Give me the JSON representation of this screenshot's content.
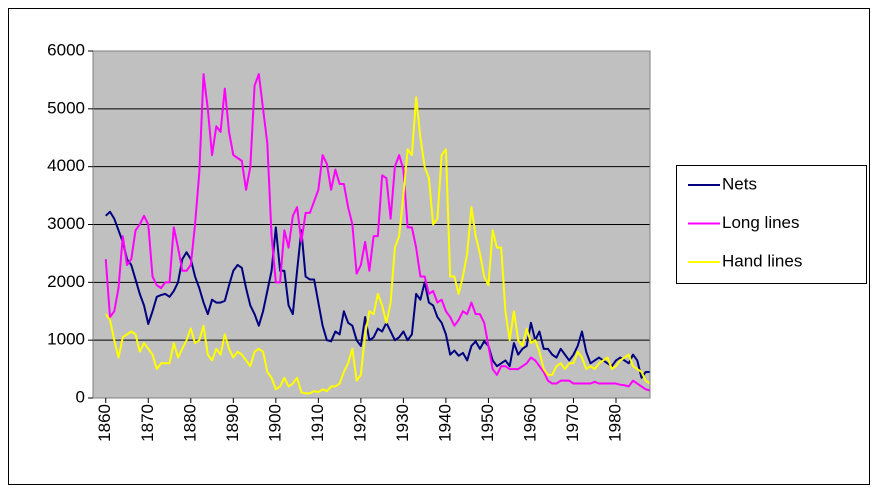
{
  "chart_data": {
    "type": "line",
    "x": [
      1860,
      1861,
      1862,
      1863,
      1864,
      1865,
      1866,
      1867,
      1868,
      1869,
      1870,
      1871,
      1872,
      1873,
      1874,
      1875,
      1876,
      1877,
      1878,
      1879,
      1880,
      1881,
      1882,
      1883,
      1884,
      1885,
      1886,
      1887,
      1888,
      1889,
      1890,
      1891,
      1892,
      1893,
      1894,
      1895,
      1896,
      1897,
      1898,
      1899,
      1900,
      1901,
      1902,
      1903,
      1904,
      1905,
      1906,
      1907,
      1908,
      1909,
      1910,
      1911,
      1912,
      1913,
      1914,
      1915,
      1916,
      1917,
      1918,
      1919,
      1920,
      1921,
      1922,
      1923,
      1924,
      1925,
      1926,
      1927,
      1928,
      1929,
      1930,
      1931,
      1932,
      1933,
      1934,
      1935,
      1936,
      1937,
      1938,
      1939,
      1940,
      1941,
      1942,
      1943,
      1944,
      1945,
      1946,
      1947,
      1948,
      1949,
      1950,
      1951,
      1952,
      1953,
      1954,
      1955,
      1956,
      1957,
      1958,
      1959,
      1960,
      1961,
      1962,
      1963,
      1964,
      1965,
      1966,
      1967,
      1968,
      1969,
      1970,
      1971,
      1972,
      1973,
      1974,
      1975,
      1976,
      1977,
      1978,
      1979,
      1980,
      1981,
      1982,
      1983,
      1984,
      1985,
      1986,
      1987,
      1988
    ],
    "series": [
      {
        "name": "Nets",
        "color": "#000080",
        "values": [
          3150,
          3220,
          3100,
          2900,
          2700,
          2400,
          2300,
          2050,
          1800,
          1600,
          1280,
          1500,
          1750,
          1780,
          1800,
          1750,
          1850,
          2000,
          2400,
          2520,
          2400,
          2100,
          1900,
          1650,
          1450,
          1700,
          1650,
          1650,
          1680,
          1950,
          2200,
          2300,
          2250,
          1900,
          1600,
          1450,
          1250,
          1500,
          1850,
          2200,
          2950,
          2200,
          2200,
          1600,
          1450,
          2200,
          2900,
          2100,
          2050,
          2050,
          1650,
          1250,
          1000,
          980,
          1150,
          1100,
          1500,
          1300,
          1250,
          1000,
          900,
          1400,
          1000,
          1050,
          1200,
          1150,
          1300,
          1150,
          1000,
          1050,
          1150,
          1000,
          1100,
          1800,
          1700,
          2000,
          1650,
          1600,
          1400,
          1300,
          1100,
          750,
          820,
          730,
          780,
          650,
          900,
          980,
          850,
          980,
          900,
          650,
          550,
          600,
          650,
          550,
          950,
          750,
          850,
          900,
          1300,
          1000,
          1150,
          850,
          850,
          750,
          700,
          850,
          750,
          650,
          750,
          900,
          1150,
          800,
          600,
          650,
          700,
          650,
          600,
          550,
          650,
          700,
          650,
          600,
          750,
          650,
          350,
          450,
          450
        ]
      },
      {
        "name": "Long lines",
        "color": "#ff00ff",
        "values": [
          2400,
          1400,
          1500,
          1900,
          2800,
          2300,
          2400,
          2900,
          3000,
          3150,
          3000,
          2100,
          1950,
          1900,
          2000,
          2000,
          2950,
          2600,
          2200,
          2200,
          2300,
          3000,
          3900,
          5600,
          5000,
          4200,
          4700,
          4600,
          5350,
          4600,
          4200,
          4150,
          4100,
          3600,
          4000,
          5400,
          5600,
          5000,
          4400,
          2800,
          2000,
          2000,
          2900,
          2600,
          3150,
          3300,
          2700,
          3200,
          3200,
          3400,
          3600,
          4200,
          4050,
          3600,
          3950,
          3700,
          3700,
          3300,
          3000,
          2150,
          2300,
          2700,
          2200,
          2800,
          2800,
          3850,
          3800,
          3100,
          4000,
          4200,
          3950,
          2950,
          2950,
          2600,
          2100,
          2100,
          1800,
          1850,
          1650,
          1700,
          1500,
          1400,
          1250,
          1350,
          1500,
          1450,
          1650,
          1450,
          1450,
          1300,
          900,
          500,
          400,
          550,
          550,
          500,
          500,
          500,
          550,
          600,
          700,
          650,
          550,
          450,
          300,
          250,
          250,
          300,
          300,
          300,
          250,
          250,
          250,
          250,
          250,
          280,
          250,
          250,
          250,
          250,
          250,
          230,
          220,
          200,
          300,
          250,
          200,
          150,
          130
        ]
      },
      {
        "name": "Hand lines",
        "color": "#ffff00",
        "values": [
          1450,
          1350,
          1000,
          700,
          1050,
          1100,
          1150,
          1100,
          800,
          950,
          850,
          750,
          500,
          600,
          600,
          600,
          950,
          700,
          850,
          1000,
          1200,
          950,
          1000,
          1250,
          750,
          650,
          850,
          750,
          1100,
          850,
          700,
          800,
          750,
          650,
          550,
          800,
          850,
          800,
          450,
          350,
          150,
          200,
          350,
          200,
          250,
          350,
          100,
          80,
          80,
          120,
          100,
          150,
          120,
          200,
          200,
          250,
          450,
          600,
          850,
          300,
          400,
          1100,
          1500,
          1450,
          1800,
          1600,
          1300,
          1650,
          2600,
          2800,
          3500,
          4300,
          4200,
          5200,
          4500,
          4000,
          3800,
          3000,
          3100,
          4200,
          4300,
          2100,
          2100,
          1800,
          2100,
          2500,
          3300,
          2800,
          2500,
          2100,
          1950,
          2900,
          2600,
          2600,
          1500,
          1000,
          1500,
          1000,
          900,
          1200,
          950,
          1000,
          800,
          500,
          400,
          400,
          550,
          600,
          500,
          600,
          600,
          800,
          700,
          500,
          550,
          500,
          600,
          650,
          700,
          500,
          550,
          650,
          700,
          750,
          550,
          500,
          450,
          300,
          250
        ]
      }
    ],
    "xlim": [
      1857,
      1988
    ],
    "xticks": [
      1860,
      1870,
      1880,
      1890,
      1900,
      1910,
      1920,
      1930,
      1940,
      1950,
      1960,
      1970,
      1980
    ],
    "ylim": [
      0,
      6000
    ],
    "yticks": [
      0,
      1000,
      2000,
      3000,
      4000,
      5000,
      6000
    ],
    "grid": true,
    "legend": "right"
  }
}
